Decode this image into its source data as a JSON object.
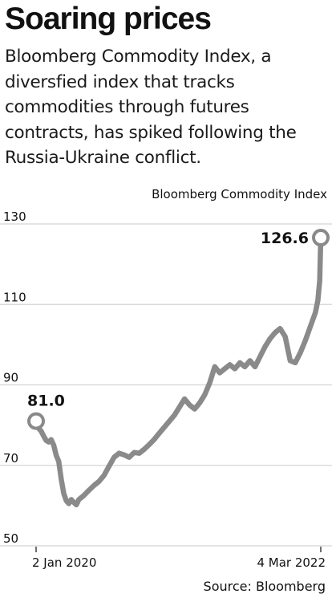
{
  "headline": "Soaring prices",
  "subtitle": "Bloomberg Commodity Index, a diversfied index that tracks commodities through futures contracts, has spiked following the Russia-Ukraine conflict.",
  "source": "Source: Bloomberg",
  "colors": {
    "line": "#8a8a8a",
    "grid": "#d4d4d4",
    "text": "#111111",
    "marker_fill": "#ffffff"
  },
  "chart_data": {
    "type": "line",
    "title": "",
    "series_label": "Bloomberg Commodity Index",
    "xlabel": "",
    "ylabel": "",
    "ylim": [
      50,
      130
    ],
    "yticks": [
      50,
      70,
      90,
      110,
      130
    ],
    "xlim": [
      "2020-01-02",
      "2022-03-04"
    ],
    "xtick_labels": [
      "2 Jan 2020",
      "4 Mar 2022"
    ],
    "grid": true,
    "annotations": [
      {
        "label": "81.0",
        "x": "2020-01-02",
        "y": 81.0
      },
      {
        "label": "126.6",
        "x": "2022-03-04",
        "y": 126.6
      }
    ],
    "series": [
      {
        "x": [
          "2020-01-02",
          "2020-01-09",
          "2020-01-16",
          "2020-01-23",
          "2020-01-30",
          "2020-02-06",
          "2020-02-13",
          "2020-02-20",
          "2020-02-27",
          "2020-03-05",
          "2020-03-12",
          "2020-03-19",
          "2020-03-26",
          "2020-04-02",
          "2020-04-09",
          "2020-04-16",
          "2020-04-23",
          "2020-04-30",
          "2020-05-14",
          "2020-05-28",
          "2020-06-11",
          "2020-06-25",
          "2020-07-09",
          "2020-07-23",
          "2020-08-06",
          "2020-08-20",
          "2020-09-03",
          "2020-09-17",
          "2020-10-01",
          "2020-10-15",
          "2020-10-29",
          "2020-11-12",
          "2020-11-26",
          "2020-12-10",
          "2020-12-24",
          "2021-01-07",
          "2021-01-21",
          "2021-02-04",
          "2021-02-18",
          "2021-03-04",
          "2021-03-18",
          "2021-04-01",
          "2021-04-15",
          "2021-04-29",
          "2021-05-13",
          "2021-05-27",
          "2021-06-10",
          "2021-06-24",
          "2021-07-08",
          "2021-07-22",
          "2021-08-05",
          "2021-08-19",
          "2021-09-02",
          "2021-09-16",
          "2021-09-30",
          "2021-10-14",
          "2021-10-28",
          "2021-11-11",
          "2021-11-25",
          "2021-12-09",
          "2021-12-23",
          "2022-01-06",
          "2022-01-20",
          "2022-02-03",
          "2022-02-17",
          "2022-02-24",
          "2022-03-01",
          "2022-03-04"
        ],
        "values": [
          81.0,
          79.2,
          78.5,
          77.3,
          76.2,
          75.8,
          76.4,
          75.0,
          72.5,
          71.0,
          66.5,
          63.0,
          61.2,
          60.5,
          61.5,
          60.8,
          60.2,
          61.5,
          62.5,
          63.8,
          65.0,
          66.0,
          67.5,
          69.8,
          72.0,
          73.0,
          72.6,
          72.0,
          73.2,
          73.0,
          74.0,
          75.2,
          76.5,
          78.0,
          79.5,
          81.0,
          82.5,
          84.5,
          86.5,
          85.0,
          84.0,
          85.5,
          87.5,
          90.5,
          94.5,
          93.0,
          94.0,
          95.0,
          94.0,
          95.5,
          94.5,
          96.0,
          94.5,
          97.0,
          99.5,
          101.5,
          103.0,
          104.0,
          102.0,
          96.0,
          95.5,
          98.0,
          101.0,
          104.5,
          108.0,
          111.0,
          116.0,
          126.6
        ]
      }
    ]
  }
}
